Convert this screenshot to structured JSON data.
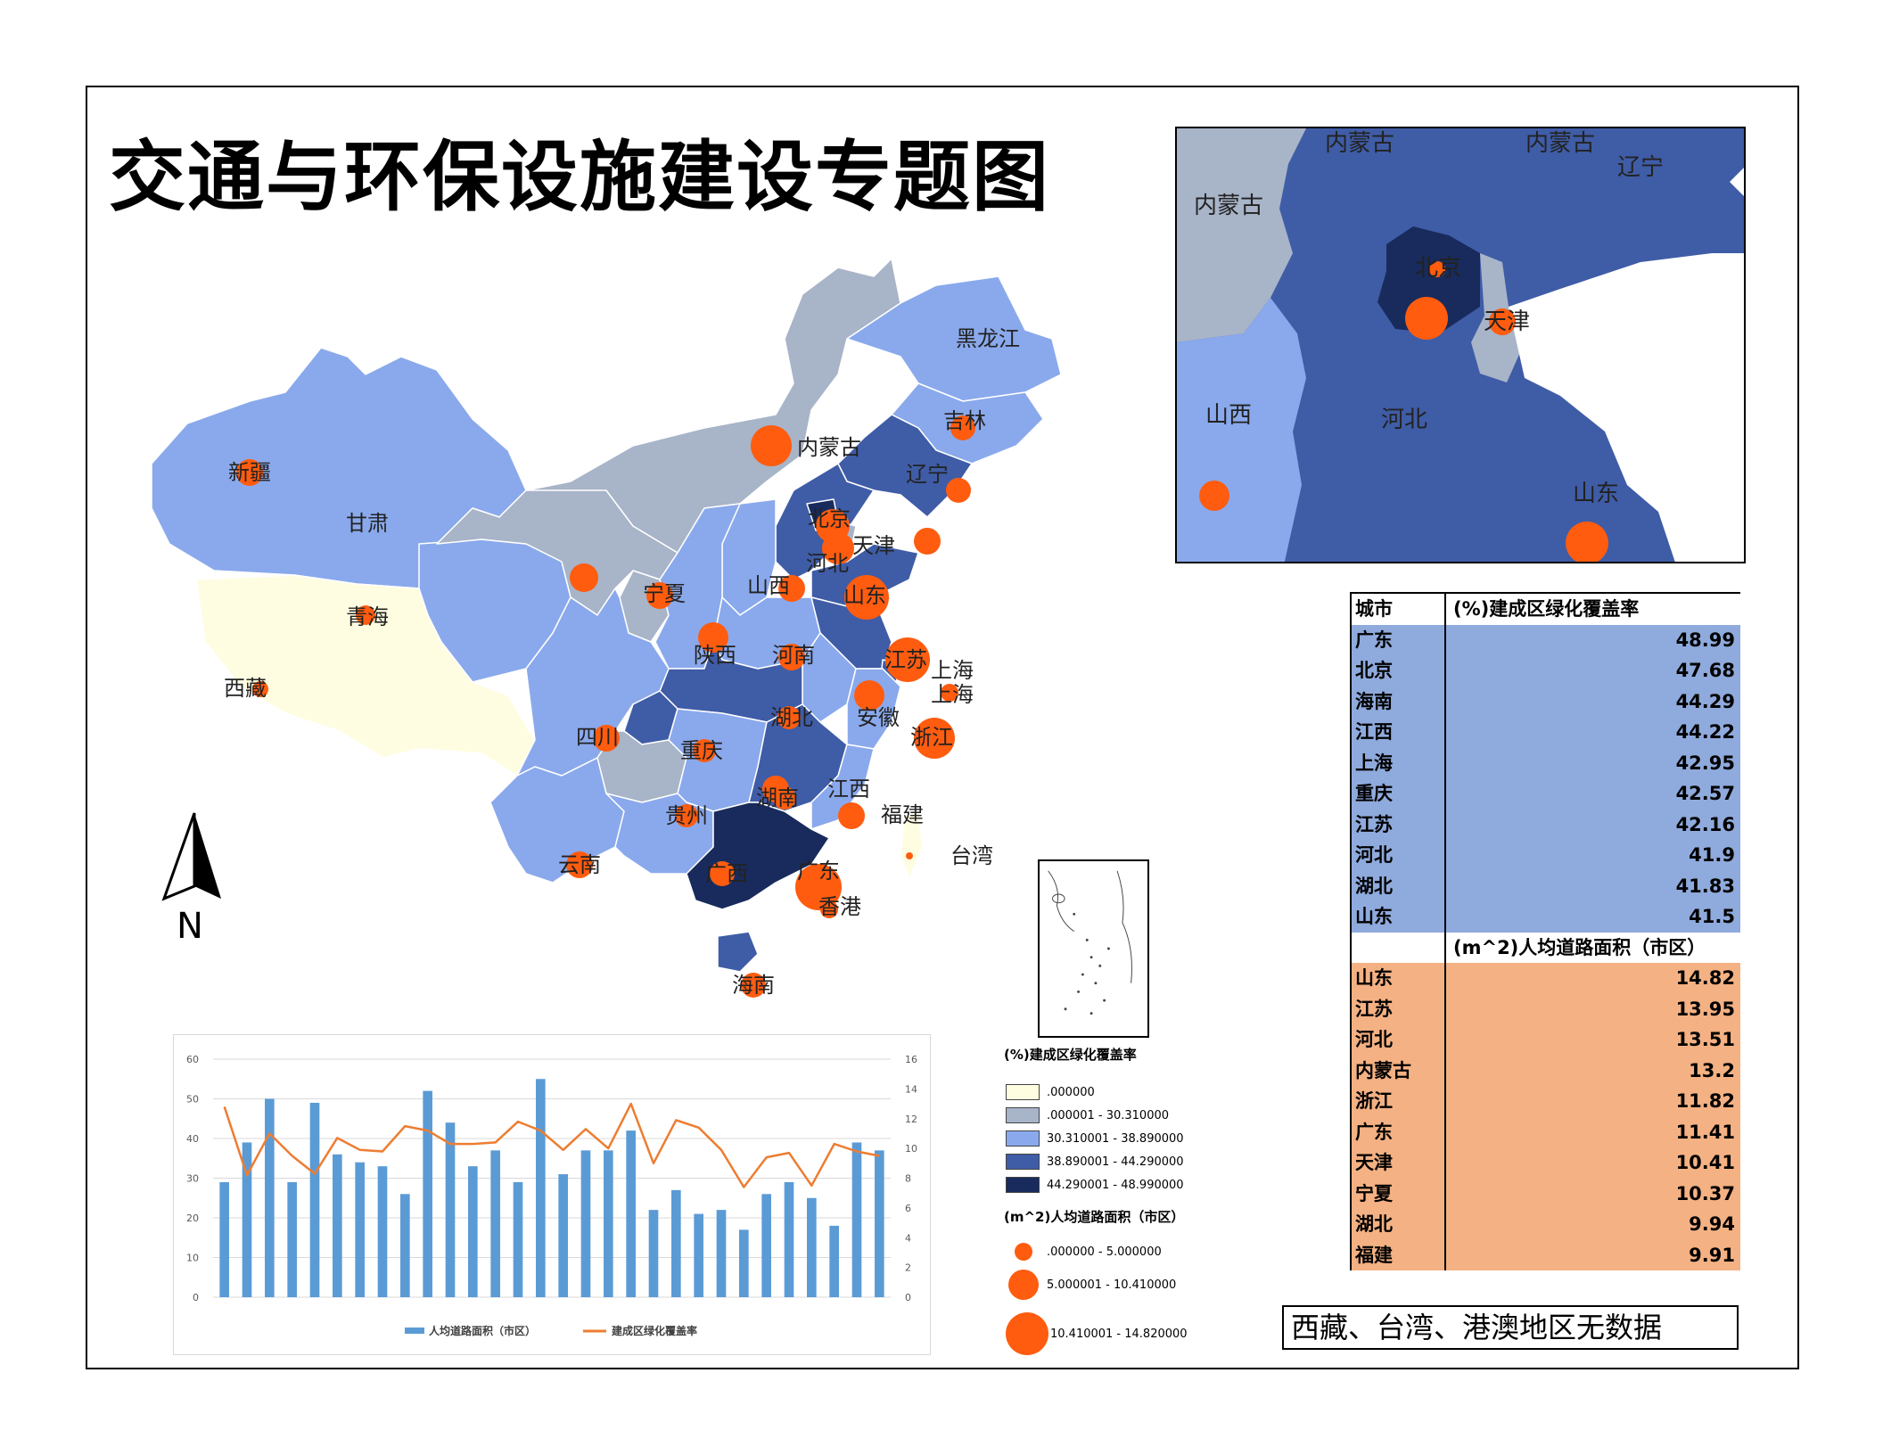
{
  "title": "交通与环保设施建设专题图",
  "north_label": "N",
  "no_data_note": "西藏、台湾、港澳地区无数据",
  "colors": {
    "class0": "#fffde1",
    "class1": "#a8b4c8",
    "class2": "#8aa9ec",
    "class3": "#3f5ca6",
    "class4": "#182b5c",
    "circle": "#ff5c0f",
    "bar": "#5b9bd5",
    "line": "#ed7d31",
    "table_blue": "#8faadc",
    "table_orange": "#f4b183"
  },
  "main_map": {
    "provinces": [
      {
        "name": "新疆"
      },
      {
        "name": "西藏"
      },
      {
        "name": "青海"
      },
      {
        "name": "甘肃"
      },
      {
        "name": "内蒙古"
      },
      {
        "name": "黑龙江"
      },
      {
        "name": "吉林"
      },
      {
        "name": "辽宁"
      },
      {
        "name": "北京"
      },
      {
        "name": "天津"
      },
      {
        "name": "河北"
      },
      {
        "name": "山西"
      },
      {
        "name": "山东"
      },
      {
        "name": "宁夏"
      },
      {
        "name": "陕西"
      },
      {
        "name": "河南"
      },
      {
        "name": "江苏"
      },
      {
        "name": "上海"
      },
      {
        "name": "上海"
      },
      {
        "name": "安徽"
      },
      {
        "name": "湖北"
      },
      {
        "name": "浙江"
      },
      {
        "name": "四川"
      },
      {
        "name": "重庆"
      },
      {
        "name": "贵州"
      },
      {
        "name": "湖南"
      },
      {
        "name": "江西"
      },
      {
        "name": "福建"
      },
      {
        "name": "台湾"
      },
      {
        "name": "云南"
      },
      {
        "name": "广西"
      },
      {
        "name": "广东"
      },
      {
        "name": "香港"
      },
      {
        "name": "海南"
      }
    ]
  },
  "inset_map": {
    "labels": [
      "内蒙古",
      "内蒙古",
      "内蒙古",
      "辽宁",
      "北京",
      "天津",
      "山西",
      "河北",
      "山东"
    ]
  },
  "legend": {
    "fill_title": "(%)建成区绿化覆盖率",
    "fill_classes": [
      ".000000",
      ".000001 - 30.310000",
      "30.310001 - 38.890000",
      "38.890001 - 44.290000",
      "44.290001 - 48.990000"
    ],
    "circle_title": "(m^2)人均道路面积（市区）",
    "circle_classes": [
      ".000000 - 5.000000",
      "5.000001 - 10.410000",
      "10.410001 - 14.820000"
    ]
  },
  "table": {
    "col_city": "城市",
    "green_header": "(%)建成区绿化覆盖率",
    "green_rows": [
      {
        "city": "广东",
        "value": "48.99"
      },
      {
        "city": "北京",
        "value": "47.68"
      },
      {
        "city": "海南",
        "value": "44.29"
      },
      {
        "city": "江西",
        "value": "44.22"
      },
      {
        "city": "上海",
        "value": "42.95"
      },
      {
        "city": "重庆",
        "value": "42.57"
      },
      {
        "city": "江苏",
        "value": "42.16"
      },
      {
        "city": "河北",
        "value": "41.9"
      },
      {
        "city": "湖北",
        "value": "41.83"
      },
      {
        "city": "山东",
        "value": "41.5"
      }
    ],
    "road_header": "(m^2)人均道路面积（市区）",
    "road_rows": [
      {
        "city": "山东",
        "value": "14.82"
      },
      {
        "city": "江苏",
        "value": "13.95"
      },
      {
        "city": "河北",
        "value": "13.51"
      },
      {
        "city": "内蒙古",
        "value": "13.2"
      },
      {
        "city": "浙江",
        "value": "11.82"
      },
      {
        "city": "广东",
        "value": "11.41"
      },
      {
        "city": "天津",
        "value": "10.41"
      },
      {
        "city": "宁夏",
        "value": "10.37"
      },
      {
        "city": "湖北",
        "value": "9.94"
      },
      {
        "city": "福建",
        "value": "9.91"
      }
    ]
  },
  "chart_data": {
    "type": "bar",
    "legend_placement": "bottom",
    "series": [
      {
        "name": "人均道路面积（市区）",
        "type": "bar",
        "axis": "left",
        "values": [
          29,
          39,
          50,
          29,
          49,
          36,
          34,
          33,
          26,
          52,
          44,
          33,
          37,
          29,
          55,
          31,
          37,
          37,
          42,
          22,
          27,
          21,
          22,
          17,
          26,
          29,
          25,
          18,
          39,
          37
        ]
      },
      {
        "name": "建成区绿化覆盖率",
        "type": "line",
        "axis": "right",
        "values": [
          12.8,
          8.2,
          11,
          9.5,
          8.3,
          10.7,
          9.9,
          9.8,
          11.5,
          11.2,
          10.3,
          10.3,
          10.4,
          11.8,
          11.2,
          9.9,
          11.3,
          10,
          13,
          9,
          11.9,
          11.4,
          9.9,
          7.4,
          9.4,
          9.7,
          7.5,
          10.3,
          9.8,
          9.5
        ]
      }
    ],
    "left_axis": {
      "min": 0,
      "max": 60,
      "ticks": [
        "0",
        "10",
        "20",
        "30",
        "40",
        "50",
        "60"
      ]
    },
    "right_axis": {
      "min": 0,
      "max": 16,
      "ticks": [
        "0",
        "2",
        "4",
        "6",
        "8",
        "10",
        "12",
        "14",
        "16"
      ]
    },
    "grid": true
  }
}
